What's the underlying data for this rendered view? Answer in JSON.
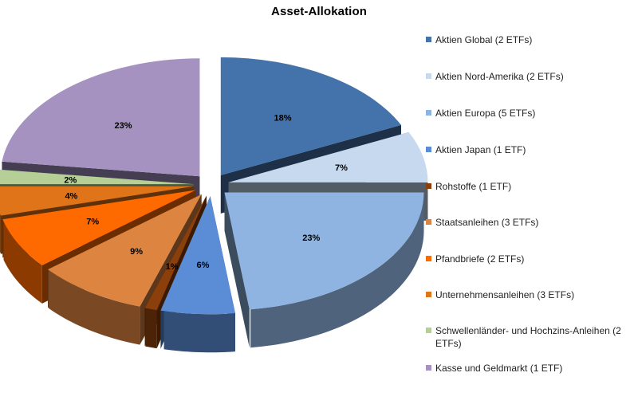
{
  "chart_data": {
    "type": "pie",
    "title": "Asset-Allokation",
    "legend_position": "right",
    "exploded": true,
    "three_d": true,
    "slices": [
      {
        "name": "Aktien Global (2 ETFs)",
        "value": 18,
        "label": "18%",
        "color": "#4472aa"
      },
      {
        "name": "Aktien Nord-Amerika (2 ETFs)",
        "value": 7,
        "label": "7%",
        "color": "#c6d9ef"
      },
      {
        "name": "Aktien Europa (5 ETFs)",
        "value": 23,
        "label": "23%",
        "color": "#8fb4e1"
      },
      {
        "name": "Aktien Japan (1 ETF)",
        "value": 6,
        "label": "6%",
        "color": "#5b8cd6"
      },
      {
        "name": "Rohstoffe (1 ETF)",
        "value": 1,
        "label": "1%",
        "color": "#8b3f0a"
      },
      {
        "name": "Staatsanleihen (3 ETFs)",
        "value": 9,
        "label": "9%",
        "color": "#dd8440"
      },
      {
        "name": "Pfandbriefe (2 ETFs)",
        "value": 7,
        "label": "7%",
        "color": "#ff6a00"
      },
      {
        "name": "Unternehmensanleihen (3 ETFs)",
        "value": 4,
        "label": "4%",
        "color": "#e07418"
      },
      {
        "name": "Schwellenländer- und Hochzins-Anleihen (2 ETFs)",
        "value": 2,
        "label": "2%",
        "color": "#b5cf96"
      },
      {
        "name": "Kasse und Geldmarkt (1 ETF)",
        "value": 23,
        "label": "23%",
        "color": "#a592c0"
      }
    ]
  }
}
